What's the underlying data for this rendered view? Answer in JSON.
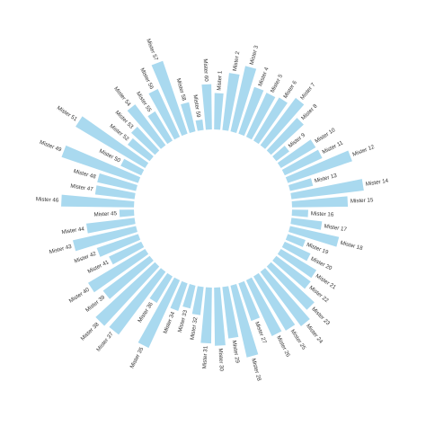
{
  "chart_data": {
    "type": "bar",
    "layout": "circular",
    "title": "",
    "xlabel": "",
    "ylabel": "",
    "grid": false,
    "legend": "none",
    "bar_color": "#a9d9ef",
    "categories": [
      "Mister 1",
      "Mister 2",
      "Mister 3",
      "Mister 4",
      "Mister 5",
      "Mister 6",
      "Mister 7",
      "Mister 8",
      "Mister 9",
      "Mister 10",
      "Mister 11",
      "Mister 12",
      "Mister 13",
      "Mister 14",
      "Mister 15",
      "Mister 16",
      "Mister 17",
      "Mister 18",
      "Mister 19",
      "Mister 20",
      "Mister 21",
      "Mister 22",
      "Mister 23",
      "Mister 24",
      "Mister 25",
      "Mister 26",
      "Mister 27",
      "Mister 28",
      "Mister 29",
      "Mister 30",
      "Mister 31",
      "Mister 32",
      "Mister 33",
      "Mister 34",
      "Mister 35",
      "Mister 36",
      "Mister 37",
      "Mister 38",
      "Mister 39",
      "Mister 40",
      "Mister 41",
      "Mister 42",
      "Mister 43",
      "Mister 44",
      "Mister 45",
      "Mister 46",
      "Mister 47",
      "Mister 48",
      "Mister 49",
      "Mister 50",
      "Mister 51",
      "Mister 52",
      "Mister 53",
      "Mister 54",
      "Mister 55",
      "Mister 56",
      "Mister 57",
      "Mister 58",
      "Mister 59",
      "Mister 60"
    ],
    "values": [
      45,
      71,
      83,
      61,
      60,
      62,
      73,
      55,
      20,
      50,
      51,
      84,
      29,
      90,
      69,
      20,
      38,
      62,
      23,
      35,
      51,
      53,
      73,
      84,
      78,
      76,
      49,
      91,
      64,
      72,
      69,
      35,
      29,
      36,
      92,
      38,
      97,
      100,
      72,
      82,
      44,
      54,
      80,
      60,
      18,
      90,
      49,
      49,
      100,
      28,
      100,
      34,
      40,
      63,
      42,
      65,
      95,
      37,
      13,
      56
    ],
    "ylim": [
      0,
      100
    ]
  }
}
